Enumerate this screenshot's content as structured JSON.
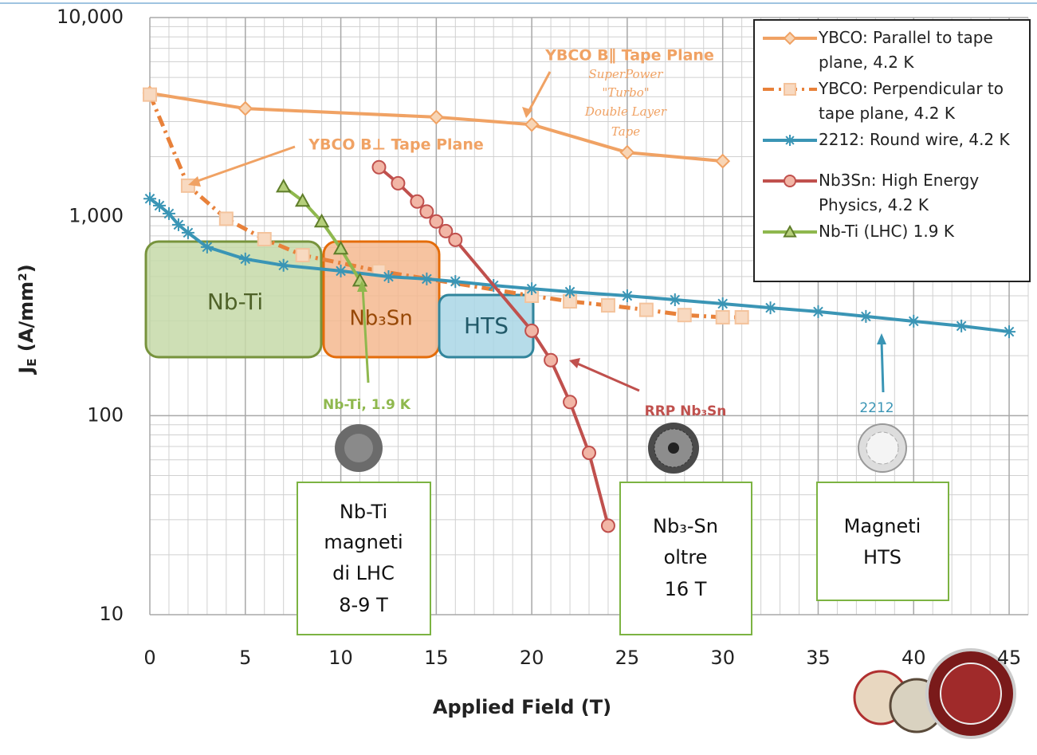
{
  "chart_data": {
    "type": "line",
    "y_label": [
      "J",
      "E",
      " (A/mm²)"
    ],
    "x_label": "Applied Field (T)",
    "log_y": true,
    "grid": true,
    "legend": "top-right",
    "xlim": [
      0,
      46
    ],
    "ylim": [
      10,
      10000
    ],
    "xticks": [
      0,
      5,
      10,
      15,
      20,
      25,
      30,
      35,
      40,
      45
    ],
    "yticks": [
      10,
      100,
      {
        "value": 1000,
        "label": "1,000"
      },
      {
        "value": 10000,
        "label": "10,000"
      }
    ],
    "series": [
      {
        "name": "YBCO: Parallel to tape plane, 4.2 K",
        "color": "#f0a264",
        "marker": "diamond",
        "dash": false,
        "x": [
          0,
          5,
          15,
          20,
          25,
          30
        ],
        "values": [
          4170,
          3490,
          3160,
          2900,
          2100,
          1900
        ]
      },
      {
        "name": "YBCO: Perpendicular to tape plane, 4.2 K",
        "color": "#e8813a",
        "marker": "square",
        "dash": true,
        "x": [
          0,
          2,
          4,
          6,
          8,
          12,
          20,
          22,
          24,
          26,
          28,
          30,
          31
        ],
        "values": [
          4100,
          1430,
          975,
          770,
          640,
          533,
          400,
          375,
          358,
          340,
          320,
          312,
          312
        ]
      },
      {
        "name": "2212: Round wire, 4.2 K",
        "color": "#3a95b5",
        "marker": "star",
        "dash": false,
        "x": [
          0,
          0.5,
          1,
          1.5,
          2,
          3,
          5,
          7,
          10,
          12.5,
          14.5,
          16,
          18,
          20,
          22,
          25,
          27.5,
          30,
          32.5,
          35,
          37.5,
          40,
          42.5,
          45
        ],
        "values": [
          1230,
          1135,
          1035,
          910,
          830,
          703,
          612,
          569,
          533,
          499,
          486,
          472,
          451,
          434,
          419,
          400,
          382,
          365,
          348,
          333,
          315,
          298,
          282,
          264
        ]
      },
      {
        "name": "Nb3Sn: High Energy Physics, 4.2 K",
        "color": "#c0504d",
        "marker": "circle",
        "dash": false,
        "x": [
          12,
          13,
          14,
          14.5,
          15,
          15.5,
          16,
          20,
          21,
          22,
          23,
          24
        ],
        "values": [
          1770,
          1470,
          1190,
          1060,
          945,
          845,
          764,
          267,
          190,
          117,
          65,
          28
        ]
      },
      {
        "name": "Nb-Ti (LHC) 1.9 K",
        "color": "#8fb84e",
        "marker": "triangle",
        "dash": false,
        "x": [
          7,
          8,
          9,
          10,
          11
        ],
        "values": [
          1415,
          1200,
          945,
          690,
          477
        ]
      }
    ],
    "regions": [
      "Nb-Ti",
      "Nb₃Sn",
      "HTS"
    ],
    "annotations": [
      "YBCO B∥ Tape Plane",
      "YBCO B⊥ Tape Plane",
      "Nb-Ti, 1.9 K",
      "RRP Nb₃Sn",
      "2212"
    ],
    "tape_note": [
      "SuperPower",
      "\"Turbo\"",
      "Double Layer",
      "Tape"
    ],
    "boxes": [
      [
        "Nb-Ti",
        "magneti",
        "di LHC",
        "8-9 T"
      ],
      [
        "Nb₃-Sn",
        "oltre",
        "16 T"
      ],
      [
        "Magneti",
        "HTS"
      ]
    ]
  }
}
